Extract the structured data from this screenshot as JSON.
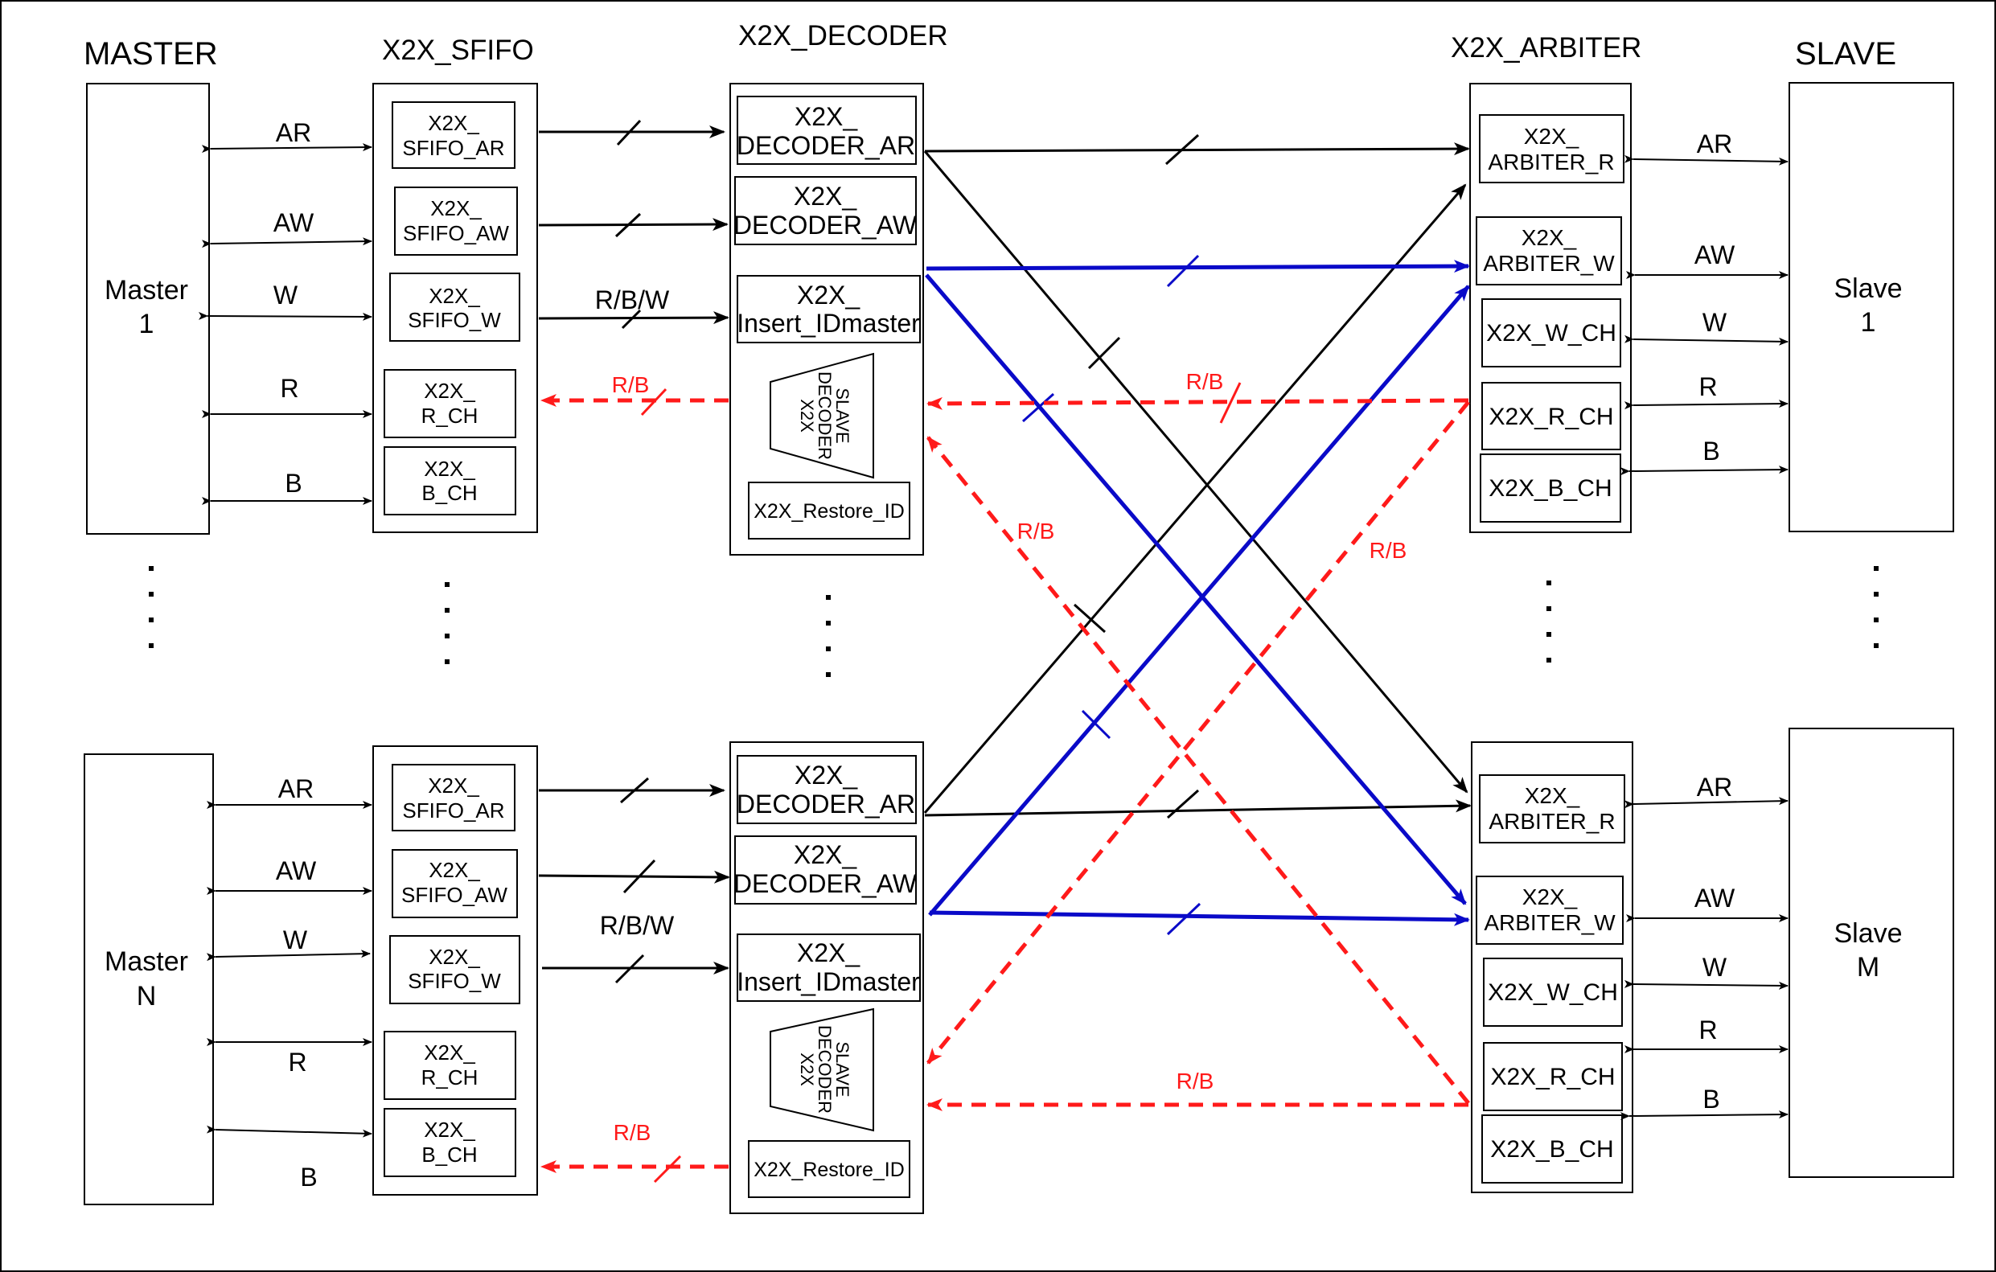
{
  "columns": {
    "master": "MASTER",
    "sfifo": "X2X_SFIFO",
    "decoder": "X2X_DECODER",
    "arbiter": "X2X_ARBITER",
    "slave": "SLAVE"
  },
  "masters": [
    {
      "line1": "Master",
      "line2": "1"
    },
    {
      "line1": "Master",
      "line2": "N"
    }
  ],
  "slaves": [
    {
      "line1": "Slave",
      "line2": "1"
    },
    {
      "line1": "Slave",
      "line2": "M"
    }
  ],
  "channels": [
    "AR",
    "AW",
    "W",
    "R",
    "B"
  ],
  "sfifo_blocks": [
    {
      "line1": "X2X_",
      "line2": "SFIFO_AR"
    },
    {
      "line1": "X2X_",
      "line2": "SFIFO_AW"
    },
    {
      "line1": "X2X_",
      "line2": "SFIFO_W"
    },
    {
      "line1": "X2X_",
      "line2": "R_CH"
    },
    {
      "line1": "X2X_",
      "line2": "B_CH"
    }
  ],
  "decoder_blocks": [
    {
      "line1": "X2X_",
      "line2": "DECODER_AR"
    },
    {
      "line1": "X2X_",
      "line2": "DECODER_AW"
    },
    {
      "line1": "X2X_",
      "line2": "Insert_IDmaster"
    }
  ],
  "decoder_slave": [
    "X2X",
    "DECODER",
    "SLAVE"
  ],
  "restore_id": "X2X_Restore_ID",
  "arbiter_blocks": [
    {
      "line1": "X2X_",
      "line2": "ARBITER_R"
    },
    {
      "line1": "X2X_",
      "line2": "ARBITER_W"
    },
    {
      "line1": "X2X_W_CH",
      "line2": ""
    },
    {
      "line1": "X2X_R_CH",
      "line2": ""
    },
    {
      "line1": "X2X_B_CH",
      "line2": ""
    }
  ],
  "labels": {
    "rbw": "R/B/W",
    "rb": "R/B"
  },
  "colors": {
    "black": "#000000",
    "blue": "#0a0ac8",
    "red": "#ff1a1a"
  }
}
